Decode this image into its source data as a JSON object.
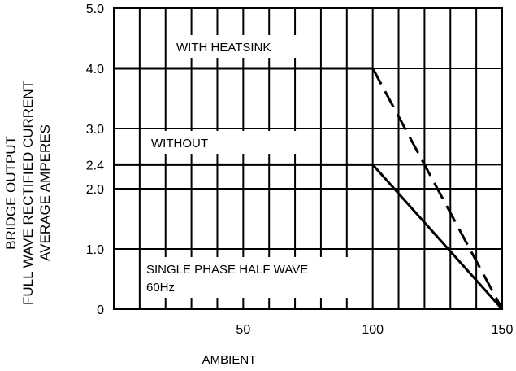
{
  "chart_data": {
    "type": "line",
    "xlabel": "AMBIENT",
    "ylabel_lines": [
      "BRIDGE OUTPUT",
      "FULL WAVE RECTIFIED CURRENT",
      "AVERAGE AMPERES"
    ],
    "xlim": [
      0,
      150
    ],
    "ylim": [
      0,
      5.0
    ],
    "x_tick_labels": [
      {
        "value": 50,
        "label": "50"
      },
      {
        "value": 100,
        "label": "100"
      },
      {
        "value": 150,
        "label": "150"
      }
    ],
    "y_tick_labels": [
      {
        "value": 0,
        "label": "0"
      },
      {
        "value": 1.0,
        "label": "1.0"
      },
      {
        "value": 2.0,
        "label": "2.0"
      },
      {
        "value": 2.4,
        "label": "2.4"
      },
      {
        "value": 3.0,
        "label": "3.0"
      },
      {
        "value": 4.0,
        "label": "4.0"
      },
      {
        "value": 5.0,
        "label": "5.0"
      }
    ],
    "grid": true,
    "series": [
      {
        "name": "WITH HEATSINK",
        "style": "dashed",
        "x": [
          0,
          100,
          150
        ],
        "y": [
          4.0,
          4.0,
          0
        ]
      },
      {
        "name": "WITHOUT",
        "style": "solid",
        "x": [
          0,
          100,
          150
        ],
        "y": [
          2.4,
          2.4,
          0
        ]
      }
    ],
    "annotation_lines": [
      "SINGLE PHASE HALF WAVE",
      "60Hz"
    ]
  }
}
